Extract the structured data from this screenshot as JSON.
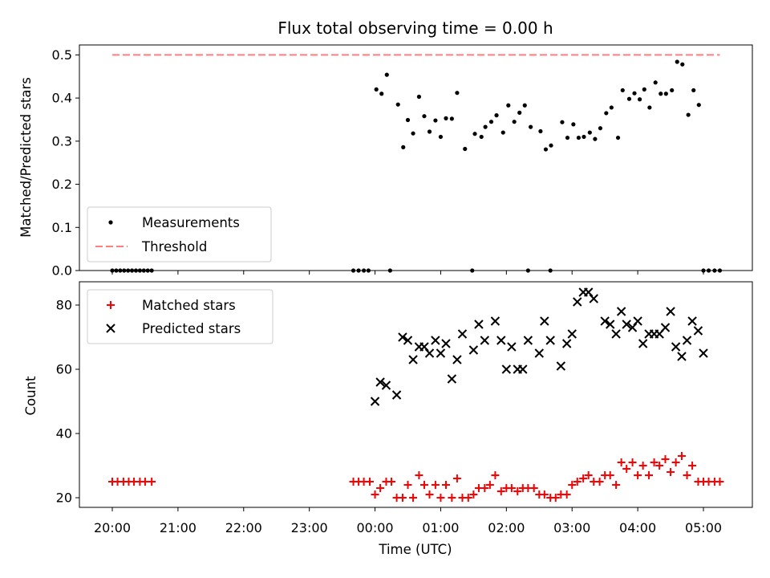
{
  "chart_data": [
    {
      "type": "scatter",
      "title": "Flux total observing time = 0.00 h",
      "ylabel": "Matched/Predicted stars",
      "ylim": [
        0,
        0.52
      ],
      "yticks": [
        "0.0",
        "0.1",
        "0.2",
        "0.3",
        "0.4",
        "0.5"
      ],
      "xlim_hours": [
        -0.5,
        5.75
      ],
      "legend_position": "lower-left",
      "grid": false,
      "threshold": {
        "name": "Threshold",
        "y": 0.5,
        "x_hours": [
          0.0,
          5.25
        ],
        "color": "#ff7f7f"
      },
      "series": [
        {
          "name": "Measurements",
          "color": "#000000",
          "points": [
            [
              0.0,
              0
            ],
            [
              0.06,
              0
            ],
            [
              0.12,
              0
            ],
            [
              0.18,
              0
            ],
            [
              0.24,
              0
            ],
            [
              0.3,
              0
            ],
            [
              0.36,
              0
            ],
            [
              0.42,
              0
            ],
            [
              0.48,
              0
            ],
            [
              0.54,
              0
            ],
            [
              0.6,
              0
            ],
            [
              3.67,
              0
            ],
            [
              3.75,
              0
            ],
            [
              3.83,
              0
            ],
            [
              3.9,
              0
            ],
            [
              4.23,
              0
            ],
            [
              5.48,
              0
            ],
            [
              6.33,
              0
            ],
            [
              6.67,
              0
            ],
            [
              4.02,
              0.42
            ],
            [
              4.1,
              0.41
            ],
            [
              4.18,
              0.454
            ],
            [
              4.35,
              0.385
            ],
            [
              4.43,
              0.286
            ],
            [
              4.5,
              0.349
            ],
            [
              4.58,
              0.318
            ],
            [
              4.67,
              0.403
            ],
            [
              4.75,
              0.358
            ],
            [
              4.83,
              0.322
            ],
            [
              4.92,
              0.348
            ],
            [
              5.0,
              0.31
            ],
            [
              5.08,
              0.353
            ],
            [
              5.17,
              0.352
            ],
            [
              5.25,
              0.412
            ],
            [
              5.37,
              0.282
            ],
            [
              5.52,
              0.317
            ],
            [
              5.62,
              0.31
            ],
            [
              5.68,
              0.333
            ],
            [
              5.77,
              0.345
            ],
            [
              5.85,
              0.36
            ],
            [
              5.95,
              0.32
            ],
            [
              6.03,
              0.383
            ],
            [
              6.12,
              0.345
            ],
            [
              6.2,
              0.366
            ],
            [
              6.28,
              0.383
            ],
            [
              6.37,
              0.333
            ],
            [
              6.52,
              0.323
            ],
            [
              6.6,
              0.281
            ],
            [
              6.68,
              0.29
            ],
            [
              6.85,
              0.344
            ],
            [
              6.93,
              0.308
            ],
            [
              7.02,
              0.339
            ],
            [
              7.1,
              0.308
            ],
            [
              7.18,
              0.31
            ],
            [
              7.27,
              0.32
            ],
            [
              7.35,
              0.305
            ],
            [
              7.43,
              0.33
            ],
            [
              7.52,
              0.365
            ],
            [
              7.6,
              0.378
            ],
            [
              7.7,
              0.308
            ],
            [
              7.77,
              0.418
            ],
            [
              7.87,
              0.398
            ],
            [
              7.95,
              0.411
            ],
            [
              8.03,
              0.397
            ],
            [
              8.1,
              0.42
            ],
            [
              8.18,
              0.378
            ],
            [
              8.27,
              0.436
            ],
            [
              8.35,
              0.41
            ],
            [
              8.43,
              0.41
            ],
            [
              8.52,
              0.418
            ],
            [
              8.6,
              0.484
            ],
            [
              8.68,
              0.478
            ],
            [
              8.77,
              0.361
            ],
            [
              8.85,
              0.418
            ],
            [
              8.93,
              0.384
            ],
            [
              9.0,
              0
            ],
            [
              9.08,
              0
            ],
            [
              9.17,
              0
            ],
            [
              9.25,
              0
            ]
          ]
        }
      ]
    },
    {
      "type": "scatter",
      "title": "",
      "xlabel": "Time (UTC)",
      "ylabel": "Count",
      "ylim": [
        16.5,
        88
      ],
      "yticks": [
        "20",
        "40",
        "60",
        "80"
      ],
      "xticks": [
        "20:00",
        "21:00",
        "22:00",
        "23:00",
        "00:00",
        "01:00",
        "02:00",
        "03:00",
        "04:00",
        "05:00"
      ],
      "xlim_hours": [
        -0.5,
        5.75
      ],
      "legend_position": "upper-left",
      "grid": false,
      "series": [
        {
          "name": "Matched stars",
          "marker": "plus",
          "color": "#ff0000",
          "points": [
            [
              0.0,
              25
            ],
            [
              0.08,
              25
            ],
            [
              0.17,
              25
            ],
            [
              0.25,
              25
            ],
            [
              0.33,
              25
            ],
            [
              0.42,
              25
            ],
            [
              0.5,
              25
            ],
            [
              0.6,
              25
            ],
            [
              3.67,
              25
            ],
            [
              3.75,
              25
            ],
            [
              3.83,
              25
            ],
            [
              3.92,
              25
            ],
            [
              4.0,
              21
            ],
            [
              4.08,
              23
            ],
            [
              4.17,
              25
            ],
            [
              4.25,
              25
            ],
            [
              4.33,
              20
            ],
            [
              4.42,
              20
            ],
            [
              4.5,
              24
            ],
            [
              4.58,
              20
            ],
            [
              4.67,
              27
            ],
            [
              4.75,
              24
            ],
            [
              4.83,
              21
            ],
            [
              4.92,
              24
            ],
            [
              5.0,
              20
            ],
            [
              5.08,
              24
            ],
            [
              5.17,
              20
            ],
            [
              5.25,
              26
            ],
            [
              5.33,
              20
            ],
            [
              5.42,
              20
            ],
            [
              5.5,
              21
            ],
            [
              5.58,
              23
            ],
            [
              5.67,
              23
            ],
            [
              5.75,
              24
            ],
            [
              5.83,
              27
            ],
            [
              5.92,
              22
            ],
            [
              6.0,
              23
            ],
            [
              6.08,
              23
            ],
            [
              6.17,
              22
            ],
            [
              6.25,
              23
            ],
            [
              6.33,
              23
            ],
            [
              6.42,
              23
            ],
            [
              6.5,
              21
            ],
            [
              6.58,
              21
            ],
            [
              6.67,
              20
            ],
            [
              6.75,
              20
            ],
            [
              6.83,
              21
            ],
            [
              6.92,
              21
            ],
            [
              7.0,
              24
            ],
            [
              7.08,
              25
            ],
            [
              7.17,
              26
            ],
            [
              7.25,
              27
            ],
            [
              7.33,
              25
            ],
            [
              7.42,
              25
            ],
            [
              7.5,
              27
            ],
            [
              7.58,
              27
            ],
            [
              7.67,
              24
            ],
            [
              7.75,
              31
            ],
            [
              7.83,
              29
            ],
            [
              7.92,
              31
            ],
            [
              8.0,
              27
            ],
            [
              8.08,
              30
            ],
            [
              8.17,
              27
            ],
            [
              8.25,
              31
            ],
            [
              8.33,
              30
            ],
            [
              8.42,
              32
            ],
            [
              8.5,
              28
            ],
            [
              8.58,
              31
            ],
            [
              8.67,
              33
            ],
            [
              8.75,
              27
            ],
            [
              8.83,
              30
            ],
            [
              8.92,
              25
            ],
            [
              9.0,
              25
            ],
            [
              9.08,
              25
            ],
            [
              9.17,
              25
            ],
            [
              9.25,
              25
            ]
          ]
        },
        {
          "name": "Predicted stars",
          "marker": "x",
          "color": "#000000",
          "points": [
            [
              4.0,
              50
            ],
            [
              4.08,
              56
            ],
            [
              4.17,
              55
            ],
            [
              4.33,
              52
            ],
            [
              4.42,
              70
            ],
            [
              4.5,
              69
            ],
            [
              4.58,
              63
            ],
            [
              4.67,
              67
            ],
            [
              4.75,
              67
            ],
            [
              4.83,
              65
            ],
            [
              4.92,
              69
            ],
            [
              5.0,
              65
            ],
            [
              5.08,
              68
            ],
            [
              5.17,
              57
            ],
            [
              5.25,
              63
            ],
            [
              5.33,
              71
            ],
            [
              5.5,
              66
            ],
            [
              5.58,
              74
            ],
            [
              5.67,
              69
            ],
            [
              5.83,
              75
            ],
            [
              5.92,
              69
            ],
            [
              6.0,
              60
            ],
            [
              6.08,
              67
            ],
            [
              6.17,
              60
            ],
            [
              6.25,
              60
            ],
            [
              6.33,
              69
            ],
            [
              6.5,
              65
            ],
            [
              6.58,
              75
            ],
            [
              6.67,
              69
            ],
            [
              6.83,
              61
            ],
            [
              6.92,
              68
            ],
            [
              7.0,
              71
            ],
            [
              7.08,
              81
            ],
            [
              7.17,
              84
            ],
            [
              7.25,
              84
            ],
            [
              7.33,
              82
            ],
            [
              7.5,
              75
            ],
            [
              7.58,
              74
            ],
            [
              7.67,
              71
            ],
            [
              7.75,
              78
            ],
            [
              7.83,
              74
            ],
            [
              7.92,
              73
            ],
            [
              8.0,
              75
            ],
            [
              8.08,
              68
            ],
            [
              8.17,
              71
            ],
            [
              8.25,
              71
            ],
            [
              8.33,
              71
            ],
            [
              8.42,
              73
            ],
            [
              8.5,
              78
            ],
            [
              8.58,
              67
            ],
            [
              8.67,
              64
            ],
            [
              8.75,
              69
            ],
            [
              8.83,
              75
            ],
            [
              8.92,
              72
            ],
            [
              9.0,
              65
            ]
          ]
        }
      ]
    }
  ]
}
